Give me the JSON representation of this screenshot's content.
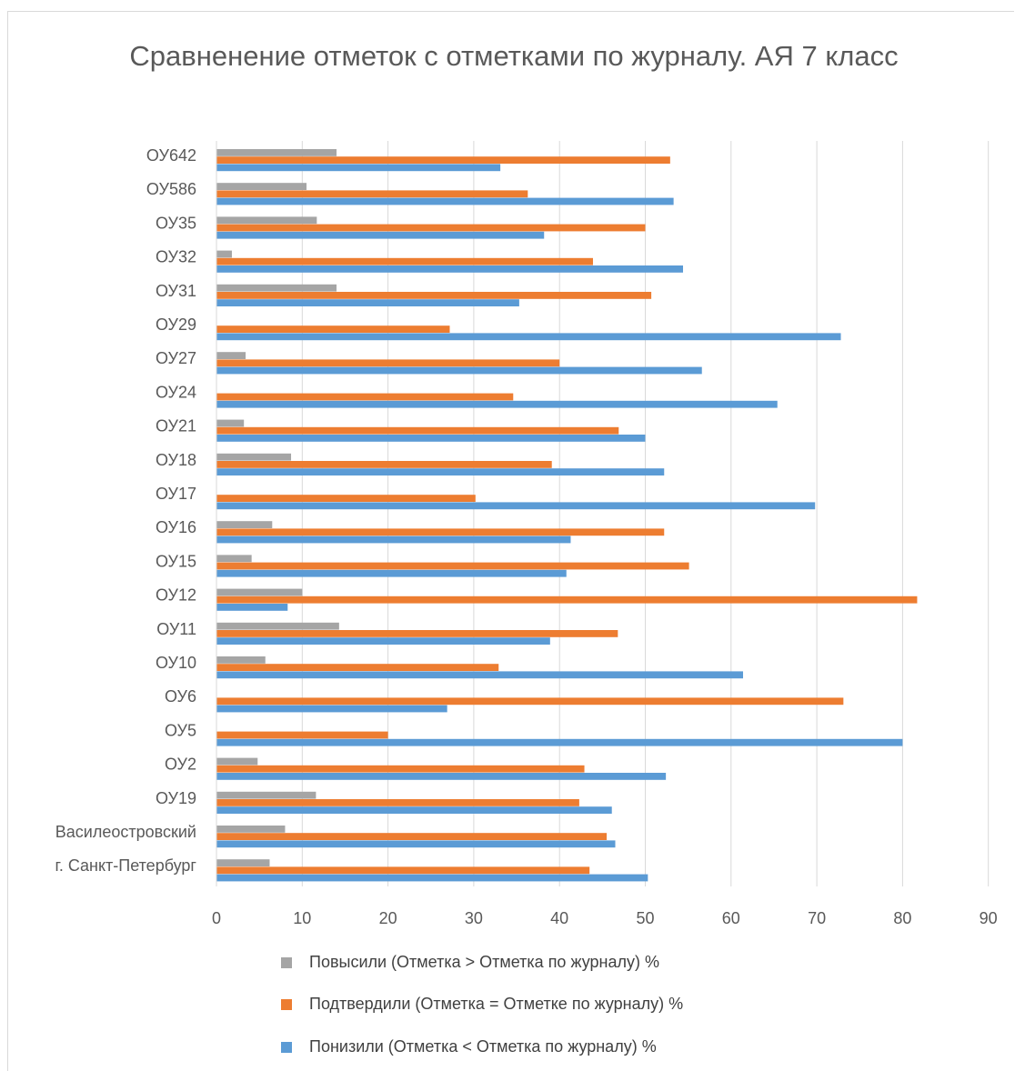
{
  "chart_data": {
    "type": "bar",
    "orientation": "horizontal",
    "title": "Сравненение отметок с отметками по журналу. АЯ 7 класс",
    "xlim": [
      0,
      90
    ],
    "xticks": [
      0,
      10,
      20,
      30,
      40,
      50,
      60,
      70,
      80,
      90
    ],
    "grid": true,
    "legend_position": "bottom",
    "categories": [
      "ОУ642",
      "ОУ586",
      "ОУ35",
      "ОУ32",
      "ОУ31",
      "ОУ29",
      "ОУ27",
      "ОУ24",
      "ОУ21",
      "ОУ18",
      "ОУ17",
      "ОУ16",
      "ОУ15",
      "ОУ12",
      "ОУ11",
      "ОУ10",
      "ОУ6",
      "ОУ5",
      "ОУ2",
      "ОУ19",
      "Василеостровский",
      "г. Санкт-Петербург"
    ],
    "series": [
      {
        "name": "Повысили (Отметка > Отметка по журналу) %",
        "color": "#a5a5a5",
        "values": [
          14.0,
          10.5,
          11.7,
          1.8,
          14.0,
          0,
          3.4,
          0,
          3.2,
          8.7,
          0,
          6.5,
          4.1,
          10.0,
          14.3,
          5.7,
          0,
          0,
          4.8,
          11.6,
          8.0,
          6.2
        ]
      },
      {
        "name": "Подтвердили (Отметка = Отметке по журналу) %",
        "color": "#ed7d31",
        "values": [
          52.9,
          36.3,
          50.0,
          43.9,
          50.7,
          27.2,
          40.0,
          34.6,
          46.9,
          39.1,
          30.2,
          52.2,
          55.1,
          81.7,
          46.8,
          32.9,
          73.1,
          20.0,
          42.9,
          42.3,
          45.5,
          43.5
        ]
      },
      {
        "name": "Понизили (Отметка < Отметка по журналу) %",
        "color": "#5b9bd5",
        "values": [
          33.1,
          53.3,
          38.2,
          54.4,
          35.3,
          72.8,
          56.6,
          65.4,
          50.0,
          52.2,
          69.8,
          41.3,
          40.8,
          8.3,
          38.9,
          61.4,
          26.9,
          80.0,
          52.4,
          46.1,
          46.5,
          50.3
        ]
      }
    ]
  }
}
